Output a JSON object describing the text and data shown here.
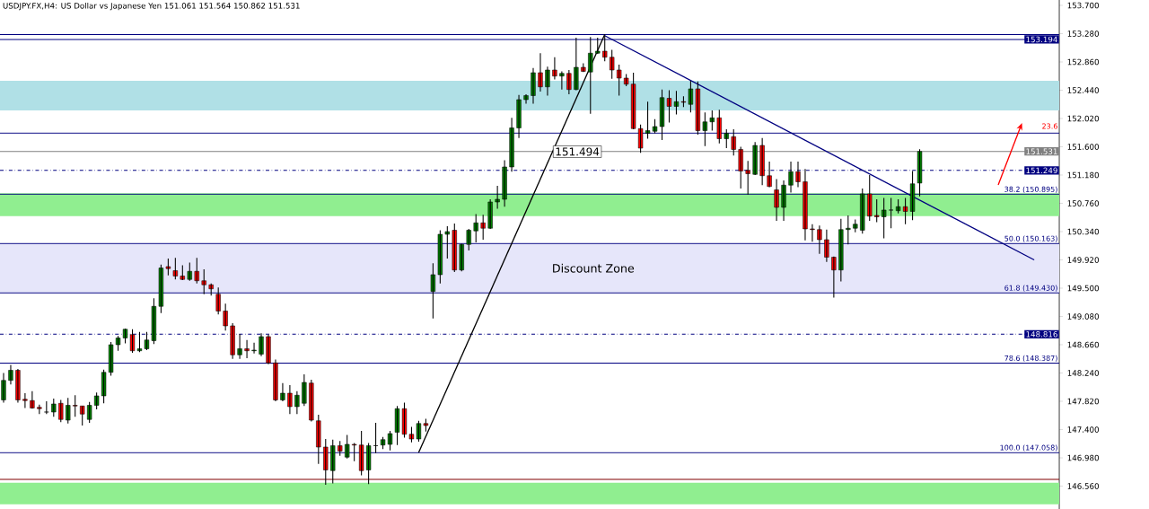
{
  "chart_data": {
    "type": "candlestick",
    "title": "USDJPY.FX,H4:  US Dollar vs Japanese Yen  151.061 151.564 150.862 151.531",
    "categories": [
      null,
      null,
      null,
      null,
      null,
      null,
      null,
      null,
      null,
      null,
      null,
      null,
      null,
      null,
      null,
      null,
      null,
      null,
      null,
      null,
      null,
      null,
      null,
      null,
      null,
      null,
      null,
      null,
      null,
      null,
      null,
      null,
      null,
      null,
      null,
      null,
      null,
      null,
      null,
      null,
      null,
      null,
      null,
      null,
      null,
      null,
      null,
      null,
      null,
      null,
      null,
      null,
      null,
      null,
      null,
      null,
      null,
      null,
      null,
      null,
      null,
      null,
      null,
      null,
      null,
      null,
      null,
      null,
      null,
      null,
      null,
      null,
      null,
      null,
      null,
      null,
      null,
      null,
      null,
      null,
      null,
      null,
      null,
      null,
      null,
      null,
      null,
      null,
      null,
      null,
      null,
      null,
      null,
      null,
      null,
      null,
      null,
      null,
      null,
      null,
      null,
      null,
      null,
      null,
      null,
      null,
      null,
      null,
      null,
      null,
      null,
      null,
      null,
      null,
      null,
      null,
      null,
      null,
      null,
      null,
      null,
      null,
      null,
      null,
      null,
      null,
      null,
      null,
      null,
      null,
      null,
      null,
      null,
      null,
      null,
      null,
      null,
      null,
      null,
      null,
      null,
      null,
      null,
      null,
      null,
      null,
      null,
      null
    ],
    "ohlc": [
      [
        147.84,
        148.24,
        147.8,
        148.13
      ],
      [
        148.13,
        148.36,
        148.07,
        148.28
      ],
      [
        148.28,
        148.3,
        147.8,
        147.84
      ],
      [
        147.85,
        147.94,
        147.72,
        147.83
      ],
      [
        147.83,
        147.97,
        147.71,
        147.72
      ],
      [
        147.73,
        147.77,
        147.63,
        147.71
      ],
      [
        147.66,
        147.82,
        147.63,
        147.66
      ],
      [
        147.66,
        147.86,
        147.59,
        147.78
      ],
      [
        147.79,
        147.84,
        147.51,
        147.55
      ],
      [
        147.54,
        147.87,
        147.49,
        147.76
      ],
      [
        147.76,
        147.91,
        147.59,
        147.75
      ],
      [
        147.75,
        147.75,
        147.46,
        147.63
      ],
      [
        147.55,
        147.81,
        147.5,
        147.76
      ],
      [
        147.76,
        147.95,
        147.7,
        147.9
      ],
      [
        147.9,
        148.29,
        147.79,
        148.25
      ],
      [
        148.25,
        148.7,
        148.2,
        148.66
      ],
      [
        148.66,
        148.79,
        148.57,
        148.76
      ],
      [
        148.76,
        148.9,
        148.68,
        148.89
      ],
      [
        148.81,
        148.89,
        148.54,
        148.57
      ],
      [
        148.57,
        148.85,
        148.55,
        148.6
      ],
      [
        148.6,
        148.85,
        148.58,
        148.73
      ],
      [
        148.72,
        149.35,
        148.67,
        149.23
      ],
      [
        149.23,
        149.85,
        149.13,
        149.8
      ],
      [
        149.82,
        149.94,
        149.69,
        149.79
      ],
      [
        149.76,
        149.95,
        149.63,
        149.68
      ],
      [
        149.68,
        149.84,
        149.62,
        149.63
      ],
      [
        149.63,
        149.88,
        149.61,
        149.75
      ],
      [
        149.75,
        149.95,
        149.57,
        149.61
      ],
      [
        149.61,
        149.78,
        149.41,
        149.55
      ],
      [
        149.55,
        149.57,
        149.39,
        149.49
      ],
      [
        149.41,
        149.51,
        149.11,
        149.16
      ],
      [
        149.16,
        149.27,
        148.87,
        148.94
      ],
      [
        148.94,
        148.98,
        148.45,
        148.51
      ],
      [
        148.51,
        148.82,
        148.45,
        148.6
      ],
      [
        148.6,
        148.73,
        148.46,
        148.57
      ],
      [
        148.57,
        148.69,
        148.53,
        148.58
      ],
      [
        148.52,
        148.83,
        148.49,
        148.78
      ],
      [
        148.78,
        148.81,
        148.37,
        148.39
      ],
      [
        148.39,
        148.44,
        147.82,
        147.84
      ],
      [
        147.84,
        148.09,
        147.82,
        147.94
      ],
      [
        147.94,
        148.06,
        147.63,
        147.74
      ],
      [
        147.74,
        147.97,
        147.63,
        147.91
      ],
      [
        147.79,
        148.22,
        147.75,
        148.1
      ],
      [
        148.09,
        148.14,
        147.52,
        147.54
      ],
      [
        147.53,
        147.62,
        146.89,
        147.14
      ],
      [
        147.14,
        147.26,
        146.58,
        146.8
      ],
      [
        146.79,
        147.25,
        146.6,
        147.16
      ],
      [
        147.16,
        147.23,
        147.01,
        147.08
      ],
      [
        146.99,
        147.32,
        146.97,
        147.18
      ],
      [
        147.18,
        147.2,
        146.93,
        147.17
      ],
      [
        147.17,
        147.38,
        146.72,
        146.79
      ],
      [
        146.8,
        147.2,
        146.59,
        147.16
      ],
      [
        147.16,
        147.5,
        147.05,
        147.16
      ],
      [
        147.17,
        147.29,
        147.11,
        147.25
      ],
      [
        147.18,
        147.38,
        147.09,
        147.34
      ],
      [
        147.36,
        147.75,
        147.17,
        147.71
      ],
      [
        147.71,
        147.8,
        147.28,
        147.33
      ],
      [
        147.33,
        147.44,
        147.21,
        147.26
      ],
      [
        147.26,
        147.53,
        147.22,
        147.49
      ],
      [
        147.49,
        147.56,
        147.37,
        147.46
      ],
      [
        149.45,
        149.87,
        149.05,
        149.7
      ],
      [
        149.7,
        150.36,
        149.57,
        150.3
      ],
      [
        150.3,
        150.42,
        149.94,
        150.34
      ],
      [
        150.36,
        150.46,
        149.74,
        149.77
      ],
      [
        149.77,
        150.16,
        149.75,
        150.15
      ],
      [
        150.15,
        150.38,
        150.06,
        150.36
      ],
      [
        150.35,
        150.6,
        150.18,
        150.47
      ],
      [
        150.47,
        150.59,
        150.22,
        150.39
      ],
      [
        150.39,
        150.82,
        150.38,
        150.78
      ],
      [
        150.78,
        151.02,
        150.68,
        150.82
      ],
      [
        150.82,
        151.4,
        150.71,
        151.3
      ],
      [
        151.3,
        152.03,
        151.23,
        151.88
      ],
      [
        151.88,
        152.37,
        151.73,
        152.3
      ],
      [
        152.3,
        152.38,
        152.24,
        152.36
      ],
      [
        152.36,
        152.77,
        152.24,
        152.7
      ],
      [
        152.7,
        152.99,
        152.42,
        152.49
      ],
      [
        152.49,
        152.79,
        152.36,
        152.74
      ],
      [
        152.74,
        152.93,
        152.6,
        152.65
      ],
      [
        152.65,
        152.72,
        152.45,
        152.69
      ],
      [
        152.69,
        152.74,
        152.38,
        152.45
      ],
      [
        152.45,
        153.22,
        152.44,
        152.78
      ],
      [
        152.78,
        152.84,
        152.71,
        152.72
      ],
      [
        152.71,
        153.23,
        152.09,
        152.99
      ],
      [
        152.99,
        153.22,
        152.98,
        153.02
      ],
      [
        153.02,
        153.25,
        152.87,
        152.93
      ],
      [
        152.93,
        153.04,
        152.61,
        152.74
      ],
      [
        152.74,
        152.82,
        152.36,
        152.62
      ],
      [
        152.62,
        152.68,
        152.5,
        152.53
      ],
      [
        152.53,
        152.7,
        151.86,
        151.87
      ],
      [
        151.87,
        151.93,
        151.51,
        151.58
      ],
      [
        151.8,
        152.27,
        151.72,
        151.84
      ],
      [
        151.83,
        152.01,
        151.8,
        151.9
      ],
      [
        151.9,
        152.45,
        151.7,
        152.33
      ],
      [
        152.32,
        152.44,
        151.96,
        152.2
      ],
      [
        152.2,
        152.43,
        152.08,
        152.27
      ],
      [
        152.27,
        152.35,
        152.19,
        152.26
      ],
      [
        152.23,
        152.58,
        152.11,
        152.46
      ],
      [
        152.46,
        152.57,
        151.78,
        151.84
      ],
      [
        151.84,
        152.11,
        151.61,
        151.97
      ],
      [
        151.97,
        152.14,
        151.84,
        152.03
      ],
      [
        152.03,
        152.15,
        151.65,
        151.72
      ],
      [
        151.72,
        151.86,
        151.58,
        151.8
      ],
      [
        151.75,
        151.86,
        151.47,
        151.56
      ],
      [
        151.56,
        151.6,
        150.98,
        151.24
      ],
      [
        151.25,
        151.39,
        150.89,
        151.2
      ],
      [
        151.19,
        151.67,
        151.18,
        151.62
      ],
      [
        151.62,
        151.73,
        151.03,
        151.17
      ],
      [
        151.17,
        151.38,
        151.0,
        151.01
      ],
      [
        150.96,
        151.12,
        150.5,
        150.7
      ],
      [
        150.7,
        151.1,
        150.5,
        151.03
      ],
      [
        151.03,
        151.38,
        150.92,
        151.23
      ],
      [
        151.23,
        151.38,
        151.0,
        151.08
      ],
      [
        151.08,
        151.27,
        150.21,
        150.38
      ],
      [
        150.38,
        150.45,
        150.19,
        150.37
      ],
      [
        150.37,
        150.43,
        150.01,
        150.22
      ],
      [
        150.22,
        150.37,
        149.89,
        149.96
      ],
      [
        149.96,
        149.97,
        149.36,
        149.77
      ],
      [
        149.77,
        150.53,
        149.6,
        150.37
      ],
      [
        150.37,
        150.58,
        150.15,
        150.39
      ],
      [
        150.39,
        150.52,
        150.33,
        150.45
      ],
      [
        150.36,
        150.98,
        150.31,
        150.9
      ],
      [
        150.9,
        151.18,
        150.5,
        150.57
      ],
      [
        150.58,
        150.82,
        150.48,
        150.56
      ],
      [
        150.56,
        150.84,
        150.24,
        150.66
      ],
      [
        150.66,
        150.84,
        150.39,
        150.66
      ],
      [
        150.65,
        150.82,
        150.61,
        150.71
      ],
      [
        150.71,
        150.84,
        150.45,
        150.64
      ],
      [
        150.64,
        151.24,
        150.51,
        151.05
      ],
      [
        151.061,
        151.564,
        150.862,
        151.531
      ],
      null,
      null,
      null,
      null,
      null,
      null,
      null,
      null,
      null,
      null,
      null,
      null,
      null,
      null,
      null,
      null,
      null,
      null,
      null
    ],
    "series": [
      {
        "type": "line",
        "color": "#000000",
        "values": [
          null,
          null,
          null,
          null,
          null,
          null,
          null,
          null,
          null,
          null,
          null,
          null,
          null,
          null,
          null,
          null,
          null,
          null,
          null,
          null,
          null,
          null,
          null,
          null,
          null,
          null,
          null,
          null,
          null,
          null,
          null,
          null,
          null,
          null,
          null,
          null,
          null,
          null,
          null,
          null,
          null,
          null,
          null,
          null,
          null,
          null,
          null,
          null,
          null,
          null,
          null,
          null,
          null,
          null,
          null,
          null,
          null,
          null,
          147.06,
          null,
          null,
          null,
          null,
          null,
          null,
          null,
          null,
          null,
          null,
          null,
          null,
          null,
          null,
          null,
          null,
          null,
          null,
          null,
          null,
          null,
          null,
          null,
          null,
          null,
          153.27,
          null,
          null,
          null,
          null,
          null,
          null,
          null,
          null,
          null,
          null,
          null,
          null,
          null,
          null,
          null,
          null,
          null,
          null,
          null,
          null,
          null,
          null,
          null,
          null,
          null,
          null,
          null,
          null,
          null,
          null,
          null,
          null,
          null,
          null,
          null,
          null,
          null,
          null,
          null,
          null,
          null,
          null,
          null,
          null,
          null,
          null,
          null,
          null,
          null,
          null,
          null,
          null,
          null,
          null,
          null,
          null,
          null,
          null,
          null,
          null,
          null,
          null,
          null
        ]
      },
      {
        "type": "line",
        "color": "#000080",
        "values": [
          null,
          null,
          null,
          null,
          null,
          null,
          null,
          null,
          null,
          null,
          null,
          null,
          null,
          null,
          null,
          null,
          null,
          null,
          null,
          null,
          null,
          null,
          null,
          null,
          null,
          null,
          null,
          null,
          null,
          null,
          null,
          null,
          null,
          null,
          null,
          null,
          null,
          null,
          null,
          null,
          null,
          null,
          null,
          null,
          null,
          null,
          null,
          null,
          null,
          null,
          null,
          null,
          null,
          null,
          null,
          null,
          null,
          null,
          null,
          null,
          null,
          null,
          null,
          null,
          null,
          null,
          null,
          null,
          null,
          null,
          null,
          null,
          null,
          null,
          null,
          null,
          null,
          null,
          null,
          null,
          null,
          null,
          null,
          null,
          153.25,
          null,
          null,
          null,
          null,
          null,
          null,
          null,
          null,
          null,
          null,
          null,
          null,
          null,
          null,
          null,
          null,
          null,
          null,
          null,
          null,
          null,
          null,
          null,
          null,
          null,
          null,
          null,
          null,
          null,
          null,
          null,
          null,
          null,
          null,
          null,
          null,
          null,
          null,
          null,
          null,
          null,
          null,
          null,
          null,
          null,
          null,
          null,
          null,
          null,
          null,
          null,
          null,
          null,
          null,
          null,
          null,
          null,
          null,
          null,
          149.92,
          null,
          null,
          null
        ]
      }
    ],
    "ylim": [
      146.22,
      153.78
    ],
    "yticks": [
      {
        "value": 146.56,
        "label": "146.560"
      },
      {
        "value": 146.98,
        "label": "146.980"
      },
      {
        "value": 147.4,
        "label": "147.400"
      },
      {
        "value": 147.82,
        "label": "147.820"
      },
      {
        "value": 148.24,
        "label": "148.240"
      },
      {
        "value": 148.66,
        "label": "148.660"
      },
      {
        "value": 149.08,
        "label": "149.080"
      },
      {
        "value": 149.5,
        "label": "149.500"
      },
      {
        "value": 149.92,
        "label": "149.920"
      },
      {
        "value": 150.34,
        "label": "150.340"
      },
      {
        "value": 150.76,
        "label": "150.760"
      },
      {
        "value": 151.18,
        "label": "151.180"
      },
      {
        "value": 151.6,
        "label": "151.600"
      },
      {
        "value": 152.02,
        "label": "152.020"
      },
      {
        "value": 152.44,
        "label": "152.440"
      },
      {
        "value": 152.86,
        "label": "152.860"
      },
      {
        "value": 153.28,
        "label": "153.280"
      },
      {
        "value": 153.7,
        "label": "153.700"
      }
    ],
    "tick_labels": "y",
    "ref_lines": [
      {
        "axis": "y",
        "value": 153.268,
        "color": "#000080"
      },
      {
        "axis": "y",
        "value": 153.194,
        "label": "153.194",
        "color": "#000080",
        "line_style": "solid"
      },
      {
        "axis": "y",
        "value": 151.802,
        "color": "#000080"
      },
      {
        "axis": "y",
        "value": 151.531,
        "label": "151.531",
        "color": "#808080",
        "line_style": "solid"
      },
      {
        "axis": "y",
        "value": 151.249,
        "label": "151.249",
        "color": "#000080",
        "line_style": "dashdot"
      },
      {
        "axis": "y",
        "value": 150.895,
        "label": "38.2 (150.895)",
        "color": "#000080"
      },
      {
        "axis": "y",
        "value": 150.163,
        "label": "50.0 (150.163)",
        "color": "#000080"
      },
      {
        "axis": "y",
        "value": 149.43,
        "label": "61.8 (149.430)",
        "color": "#000080"
      },
      {
        "axis": "y",
        "value": 148.816,
        "label": "148.816",
        "color": "#000080",
        "line_style": "dashdot"
      },
      {
        "axis": "y",
        "value": 148.387,
        "label": "78.6 (148.387)",
        "color": "#000080"
      },
      {
        "axis": "y",
        "value": 147.058,
        "label": "100.0 (147.058)",
        "color": "#000080"
      },
      {
        "axis": "y",
        "value": 146.66,
        "color": "#800000"
      }
    ],
    "bands": [
      {
        "axis": "y",
        "from": 152.14,
        "to": 152.58,
        "color": "#b0e0e6"
      },
      {
        "axis": "y",
        "from": 150.57,
        "to": 150.91,
        "color": "#90ee90"
      },
      {
        "axis": "y",
        "from": 149.43,
        "to": 150.163,
        "color": "#e6e6fa",
        "label": "Discount Zone"
      },
      {
        "axis": "y",
        "from": 146.29,
        "to": 146.61,
        "color": "#90ee90"
      }
    ],
    "annotations": [
      "151.494",
      "23.6"
    ]
  }
}
